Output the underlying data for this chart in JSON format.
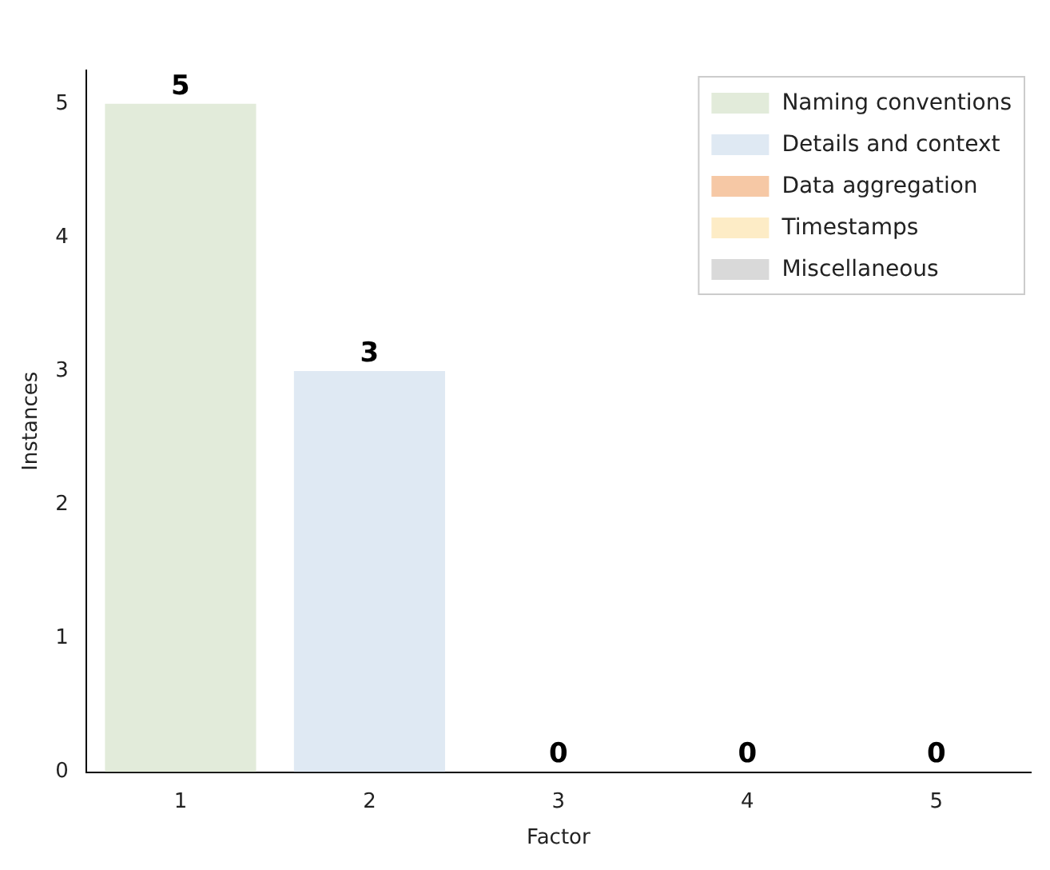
{
  "chart_data": {
    "type": "bar",
    "xlabel": "Factor",
    "ylabel": "Instances",
    "categories": [
      "1",
      "2",
      "3",
      "4",
      "5"
    ],
    "series": [
      {
        "name": "Naming conventions",
        "color": "#e2ebda",
        "values": [
          5,
          null,
          null,
          null,
          null
        ]
      },
      {
        "name": "Details and context",
        "color": "#dfe9f3",
        "values": [
          null,
          3,
          null,
          null,
          null
        ]
      },
      {
        "name": "Data aggregation",
        "color": "#f6c8a5",
        "values": [
          null,
          null,
          0,
          null,
          null
        ]
      },
      {
        "name": "Timestamps",
        "color": "#fdecc6",
        "values": [
          null,
          null,
          null,
          0,
          null
        ]
      },
      {
        "name": "Miscellaneous",
        "color": "#d9d9d9",
        "values": [
          null,
          null,
          null,
          null,
          0
        ]
      }
    ],
    "ylim": [
      0,
      5.25
    ],
    "yticks": [
      0,
      1,
      2,
      3,
      4,
      5
    ],
    "grid": false,
    "legend": "top right",
    "data_labels": true
  }
}
